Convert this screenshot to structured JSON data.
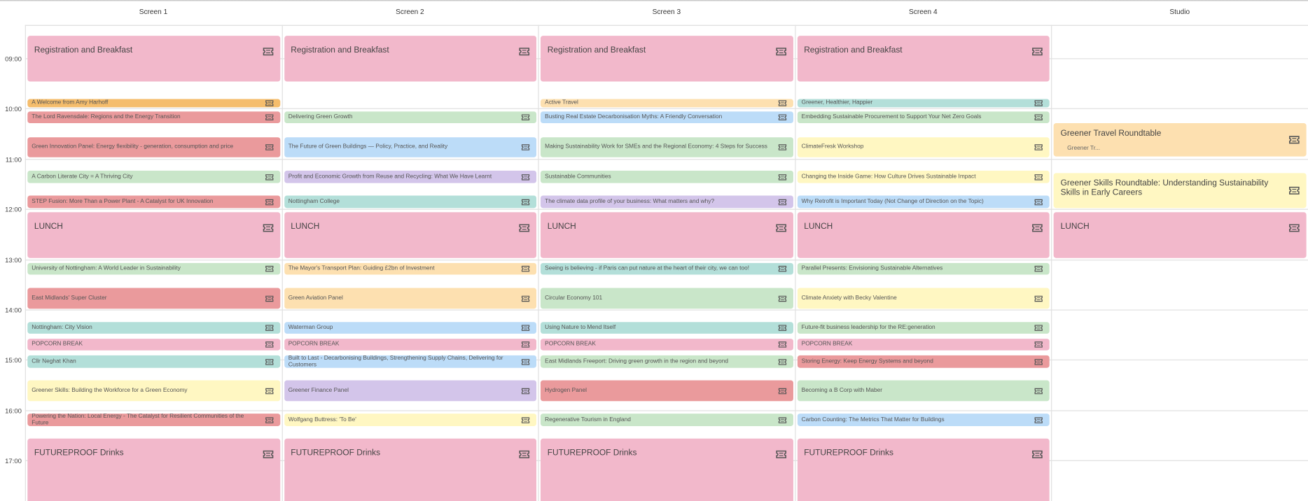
{
  "times": [
    "09:00",
    "10:00",
    "11:00",
    "12:00",
    "13:00",
    "14:00",
    "15:00",
    "16:00",
    "17:00"
  ],
  "columns": [
    {
      "name": "Screen 1",
      "events": [
        {
          "title": "Registration and Breakfast",
          "color": "#f2b8cb"
        },
        {
          "title": "A Welcome from Amy Harhoff",
          "color": "#f5bd6c"
        },
        {
          "title": "The Lord Ravensdale: Regions and the Energy Transition",
          "color": "#ea9a9c"
        },
        {
          "title": "Green Innovation Panel: Energy flexibility - generation, consumption and price",
          "color": "#ea9a9c"
        },
        {
          "title": "A Carbon Literate City = A Thriving City",
          "color": "#c9e6c9"
        },
        {
          "title": "STEP Fusion: More Than a Power Plant - A Catalyst for UK Innovation",
          "color": "#ea9a9c"
        },
        {
          "title": "LUNCH",
          "color": "#f2b8cb"
        },
        {
          "title": "University of Nottingham: A World Leader in Sustainability",
          "color": "#c9e6c9"
        },
        {
          "title": "East Midlands' Super Cluster",
          "color": "#ea9a9c"
        },
        {
          "title": "Nottingham: City Vision",
          "color": "#b3dfd9"
        },
        {
          "title": "POPCORN BREAK",
          "color": "#f2b8cb"
        },
        {
          "title": "Cllr Neghat Khan",
          "color": "#b3dfd9"
        },
        {
          "title": "Greener Skills: Building the Workforce for a Green Economy",
          "color": "#fff7c2"
        },
        {
          "title": "Powering the Nation: Local Energy - The Catalyst for Resilient Communities of the Future",
          "color": "#ea9a9c"
        },
        {
          "title": "FUTUREPROOF Drinks",
          "color": "#f2b8cb"
        }
      ]
    },
    {
      "name": "Screen 2",
      "events": [
        {
          "title": "Registration and Breakfast",
          "color": "#f2b8cb"
        },
        {
          "title": "Delivering Green Growth",
          "color": "#c9e6c9"
        },
        {
          "title": "The Future of Green Buildings — Policy, Practice, and Reality",
          "color": "#bcdcf8"
        },
        {
          "title": "Profit and Economic Growth from Reuse and Recycling: What We Have Learnt",
          "color": "#d3c5ea"
        },
        {
          "title": "Nottingham College",
          "color": "#b3dfd9"
        },
        {
          "title": "LUNCH",
          "color": "#f2b8cb"
        },
        {
          "title": "The Mayor's Transport Plan: Guiding £2bn of Investment",
          "color": "#fde0b0"
        },
        {
          "title": "Green Aviation Panel",
          "color": "#fde0b0"
        },
        {
          "title": "Waterman Group",
          "color": "#bcdcf8"
        },
        {
          "title": "POPCORN BREAK",
          "color": "#f2b8cb"
        },
        {
          "title": "Built to Last - Decarbonising Buildings, Strengthening Supply Chains, Delivering for Customers",
          "color": "#bcdcf8"
        },
        {
          "title": "Greener Finance Panel",
          "color": "#d3c5ea"
        },
        {
          "title": "Wolfgang Buttress: 'To Be'",
          "color": "#fff7c2"
        },
        {
          "title": "FUTUREPROOF Drinks",
          "color": "#f2b8cb"
        }
      ]
    },
    {
      "name": "Screen 3",
      "events": [
        {
          "title": "Registration and Breakfast",
          "color": "#f2b8cb"
        },
        {
          "title": "Active Travel",
          "color": "#fde0b0"
        },
        {
          "title": "Busting Real Estate Decarbonisation Myths: A Friendly Conversation",
          "color": "#bcdcf8"
        },
        {
          "title": "Making Sustainability Work for SMEs and the Regional Economy: 4 Steps for Success",
          "color": "#c9e6c9"
        },
        {
          "title": "Sustainable Communities",
          "color": "#c9e6c9"
        },
        {
          "title": "The climate data profile of your business: What matters and why?",
          "color": "#d3c5ea"
        },
        {
          "title": "LUNCH",
          "color": "#f2b8cb"
        },
        {
          "title": "Seeing is believing - if Paris can put nature at the heart of their city, we can too!",
          "color": "#b3dfd9"
        },
        {
          "title": "Circular Economy 101",
          "color": "#c9e6c9"
        },
        {
          "title": "Using Nature to Mend Itself",
          "color": "#b3dfd9"
        },
        {
          "title": "POPCORN BREAK",
          "color": "#f2b8cb"
        },
        {
          "title": "East Midlands Freeport: Driving green growth in the region and beyond",
          "color": "#c9e6c9"
        },
        {
          "title": "Hydrogen Panel",
          "color": "#ea9a9c"
        },
        {
          "title": "Regenerative Tourism in England",
          "color": "#c9e6c9"
        },
        {
          "title": "FUTUREPROOF Drinks",
          "color": "#f2b8cb"
        }
      ]
    },
    {
      "name": "Screen 4",
      "events": [
        {
          "title": "Registration and Breakfast",
          "color": "#f2b8cb"
        },
        {
          "title": "Greener, Healthier, Happier",
          "color": "#b3dfd9"
        },
        {
          "title": "Embedding Sustainable Procurement to Support Your Net Zero Goals",
          "color": "#c9e6c9"
        },
        {
          "title": "ClimateFresk Workshop",
          "color": "#fff7c2"
        },
        {
          "title": "Changing the Inside Game: How Culture Drives Sustainable Impact",
          "color": "#fff7c2"
        },
        {
          "title": "Why Retrofit is Important Today (Not Change of Direction on the Topic)",
          "color": "#bcdcf8"
        },
        {
          "title": "LUNCH",
          "color": "#f2b8cb"
        },
        {
          "title": "Parallel Presents: Envisioning Sustainable Alternatives",
          "color": "#c9e6c9"
        },
        {
          "title": "Climate Anxiety with Becky Valentine",
          "color": "#fff7c2"
        },
        {
          "title": "Future-fit business leadership for the RE:generation",
          "color": "#c9e6c9"
        },
        {
          "title": "POPCORN BREAK",
          "color": "#f2b8cb"
        },
        {
          "title": "Storing Energy: Keep Energy Systems and beyond",
          "color": "#ea9a9c"
        },
        {
          "title": "Becoming a B Corp with Maber",
          "color": "#c9e6c9"
        },
        {
          "title": "Carbon Counting: The Metrics That Matter for Buildings",
          "color": "#bcdcf8"
        },
        {
          "title": "FUTUREPROOF Drinks",
          "color": "#f2b8cb"
        }
      ]
    },
    {
      "name": "Studio",
      "events": [
        {
          "title": "Greener Travel Roundtable",
          "subtitle": "Greener Tr...",
          "color": "#fde0b0"
        },
        {
          "title": "Greener Skills Roundtable: Understanding Sustainability Skills in Early Careers",
          "color": "#fff7c2"
        },
        {
          "title": "LUNCH",
          "color": "#f2b8cb"
        }
      ]
    }
  ]
}
